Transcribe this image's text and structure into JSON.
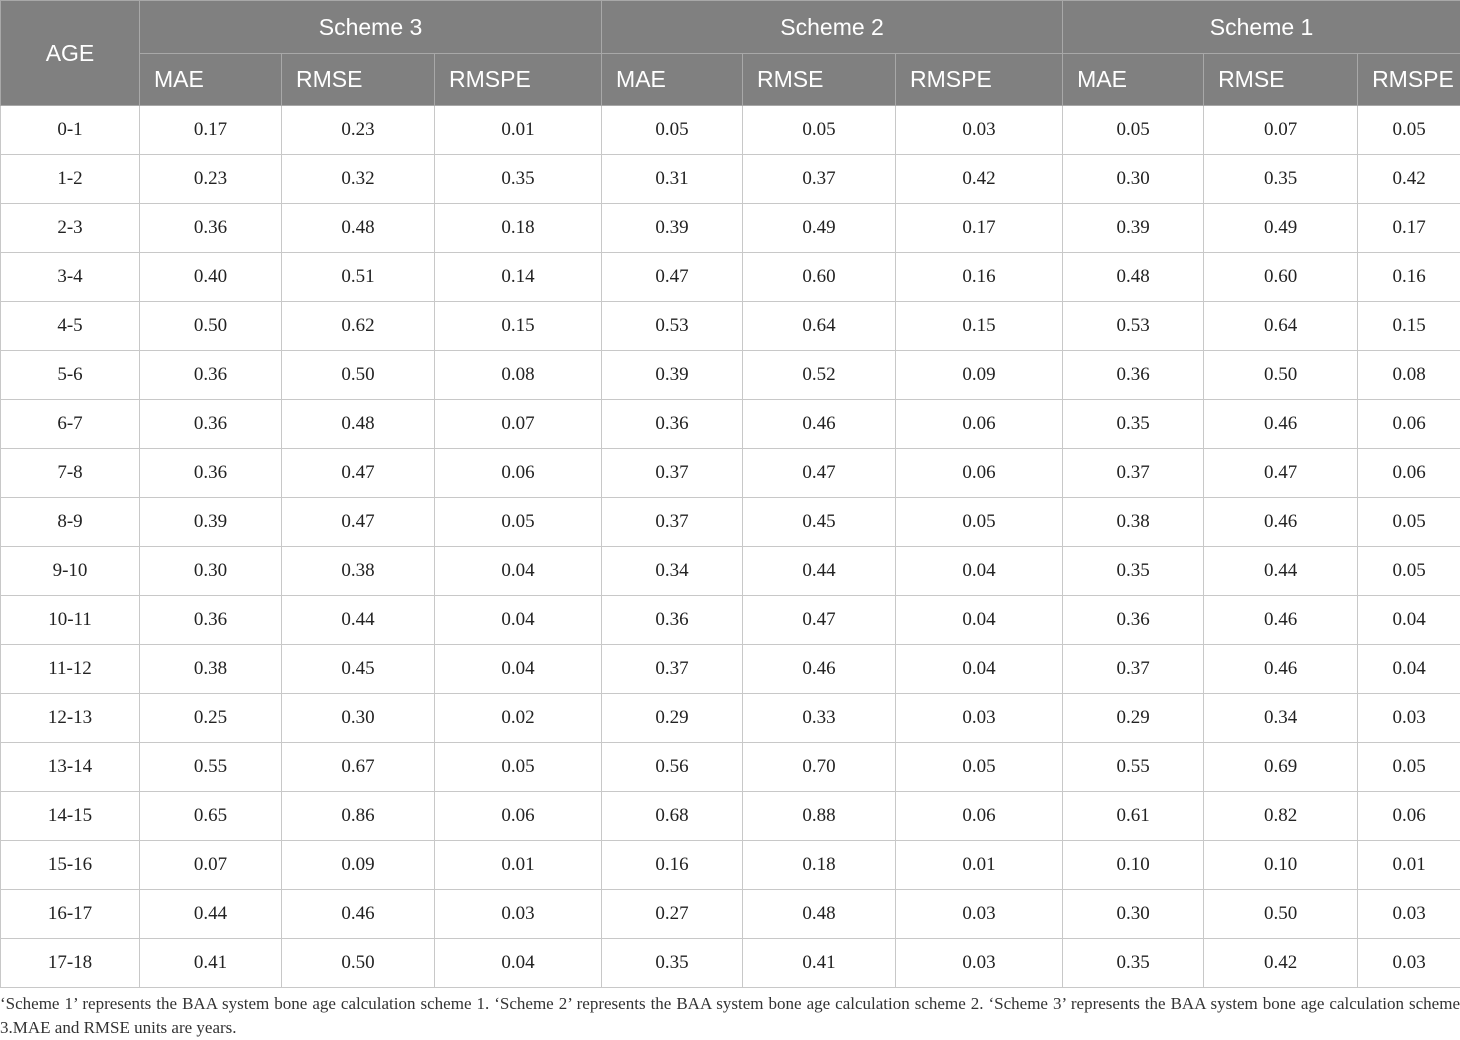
{
  "table": {
    "age_header": "AGE",
    "schemes": [
      "Scheme 3",
      "Scheme 2",
      "Scheme 1"
    ],
    "metrics": [
      "MAE",
      "RMSE",
      "RMSPE"
    ],
    "rows": [
      {
        "age": "0-1",
        "values": [
          "0.17",
          "0.23",
          "0.01",
          "0.05",
          "0.05",
          "0.03",
          "0.05",
          "0.07",
          "0.05"
        ]
      },
      {
        "age": "1-2",
        "values": [
          "0.23",
          "0.32",
          "0.35",
          "0.31",
          "0.37",
          "0.42",
          "0.30",
          "0.35",
          "0.42"
        ]
      },
      {
        "age": "2-3",
        "values": [
          "0.36",
          "0.48",
          "0.18",
          "0.39",
          "0.49",
          "0.17",
          "0.39",
          "0.49",
          "0.17"
        ]
      },
      {
        "age": "3-4",
        "values": [
          "0.40",
          "0.51",
          "0.14",
          "0.47",
          "0.60",
          "0.16",
          "0.48",
          "0.60",
          "0.16"
        ]
      },
      {
        "age": "4-5",
        "values": [
          "0.50",
          "0.62",
          "0.15",
          "0.53",
          "0.64",
          "0.15",
          "0.53",
          "0.64",
          "0.15"
        ]
      },
      {
        "age": "5-6",
        "values": [
          "0.36",
          "0.50",
          "0.08",
          "0.39",
          "0.52",
          "0.09",
          "0.36",
          "0.50",
          "0.08"
        ]
      },
      {
        "age": "6-7",
        "values": [
          "0.36",
          "0.48",
          "0.07",
          "0.36",
          "0.46",
          "0.06",
          "0.35",
          "0.46",
          "0.06"
        ]
      },
      {
        "age": "7-8",
        "values": [
          "0.36",
          "0.47",
          "0.06",
          "0.37",
          "0.47",
          "0.06",
          "0.37",
          "0.47",
          "0.06"
        ]
      },
      {
        "age": "8-9",
        "values": [
          "0.39",
          "0.47",
          "0.05",
          "0.37",
          "0.45",
          "0.05",
          "0.38",
          "0.46",
          "0.05"
        ]
      },
      {
        "age": "9-10",
        "values": [
          "0.30",
          "0.38",
          "0.04",
          "0.34",
          "0.44",
          "0.04",
          "0.35",
          "0.44",
          "0.05"
        ]
      },
      {
        "age": "10-11",
        "values": [
          "0.36",
          "0.44",
          "0.04",
          "0.36",
          "0.47",
          "0.04",
          "0.36",
          "0.46",
          "0.04"
        ]
      },
      {
        "age": "11-12",
        "values": [
          "0.38",
          "0.45",
          "0.04",
          "0.37",
          "0.46",
          "0.04",
          "0.37",
          "0.46",
          "0.04"
        ]
      },
      {
        "age": "12-13",
        "values": [
          "0.25",
          "0.30",
          "0.02",
          "0.29",
          "0.33",
          "0.03",
          "0.29",
          "0.34",
          "0.03"
        ]
      },
      {
        "age": "13-14",
        "values": [
          "0.55",
          "0.67",
          "0.05",
          "0.56",
          "0.70",
          "0.05",
          "0.55",
          "0.69",
          "0.05"
        ]
      },
      {
        "age": "14-15",
        "values": [
          "0.65",
          "0.86",
          "0.06",
          "0.68",
          "0.88",
          "0.06",
          "0.61",
          "0.82",
          "0.06"
        ]
      },
      {
        "age": "15-16",
        "values": [
          "0.07",
          "0.09",
          "0.01",
          "0.16",
          "0.18",
          "0.01",
          "0.10",
          "0.10",
          "0.01"
        ]
      },
      {
        "age": "16-17",
        "values": [
          "0.44",
          "0.46",
          "0.03",
          "0.27",
          "0.48",
          "0.03",
          "0.30",
          "0.50",
          "0.03"
        ]
      },
      {
        "age": "17-18",
        "values": [
          "0.41",
          "0.50",
          "0.04",
          "0.35",
          "0.41",
          "0.03",
          "0.35",
          "0.42",
          "0.03"
        ]
      }
    ]
  },
  "footnote": "‘Scheme 1’ represents the BAA system bone age calculation scheme 1. ‘Scheme 2’ represents the BAA system bone age calculation scheme 2. ‘Scheme 3’ represents the BAA system bone age calculation scheme 3.MAE and RMSE units are years."
}
